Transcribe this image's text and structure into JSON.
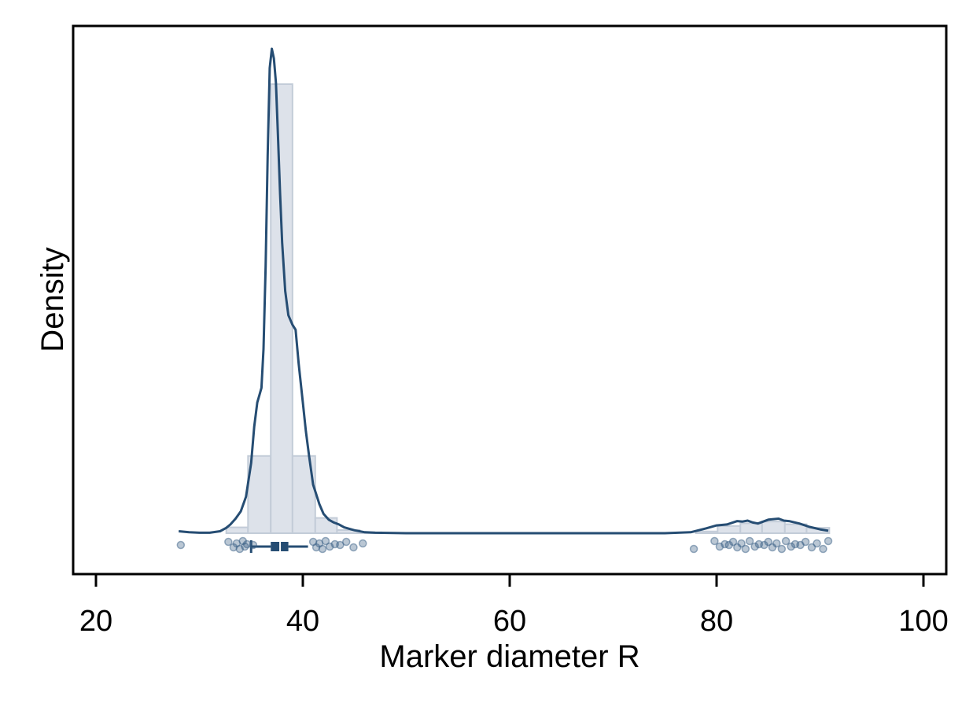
{
  "chart_data": {
    "type": "histogram",
    "title": "",
    "xlabel": "Marker diameter R",
    "ylabel": "Density",
    "xlim": [
      18,
      102
    ],
    "xticks": [
      20,
      40,
      60,
      80,
      100
    ],
    "xtick_labels": [
      "20",
      "40",
      "60",
      "80",
      "100"
    ],
    "yticks_shown": false,
    "grid": false,
    "colors": {
      "histogram_fill": "#dde2ea",
      "histogram_edge": "#c3ccd8",
      "density_line": "#264d73",
      "points": "#3a5f85"
    },
    "histogram": {
      "bin_edges": [
        32.6,
        34.7,
        36.9,
        39.0,
        41.2,
        43.3,
        45.5,
        47.6
      ],
      "relative_heights": [
        0.013,
        0.172,
        1.0,
        0.172,
        0.034,
        0.007,
        0.002
      ]
    },
    "histogram_right": {
      "bin_edges": [
        78.0,
        80.1,
        82.3,
        84.4,
        86.6,
        88.7,
        90.9
      ],
      "relative_heights": [
        0.004,
        0.016,
        0.022,
        0.026,
        0.02,
        0.012
      ]
    },
    "density": {
      "x": [
        28.0,
        29.0,
        30.0,
        31.0,
        32.0,
        32.6,
        33.0,
        33.5,
        34.0,
        34.5,
        35.0,
        35.3,
        35.6,
        35.8,
        36.0,
        36.2,
        36.4,
        36.6,
        36.8,
        37.0,
        37.2,
        37.4,
        37.6,
        37.8,
        38.0,
        38.3,
        38.6,
        39.0,
        39.3,
        39.6,
        40.0,
        40.3,
        40.6,
        41.0,
        41.3,
        41.6,
        42.0,
        42.5,
        43.0,
        43.5,
        44.0,
        45.0,
        46.0,
        47.0,
        50.0,
        55.0,
        60.0,
        65.0,
        70.0,
        75.0,
        77.5,
        79.0,
        80.0,
        81.0,
        82.0,
        82.5,
        83.0,
        83.5,
        84.0,
        85.0,
        86.0,
        86.5,
        87.0,
        88.0,
        89.0,
        90.0,
        90.8
      ],
      "y": [
        0.004,
        0.002,
        0.001,
        0.001,
        0.004,
        0.011,
        0.018,
        0.03,
        0.045,
        0.075,
        0.145,
        0.22,
        0.27,
        0.285,
        0.3,
        0.38,
        0.55,
        0.78,
        0.96,
        1.0,
        0.98,
        0.93,
        0.82,
        0.7,
        0.6,
        0.5,
        0.45,
        0.43,
        0.42,
        0.35,
        0.27,
        0.21,
        0.16,
        0.1,
        0.08,
        0.06,
        0.04,
        0.028,
        0.022,
        0.018,
        0.012,
        0.006,
        0.002,
        0.001,
        0.0,
        0.0,
        0.0,
        0.0,
        0.0,
        0.0,
        0.002,
        0.01,
        0.016,
        0.018,
        0.025,
        0.024,
        0.026,
        0.022,
        0.02,
        0.028,
        0.03,
        0.026,
        0.025,
        0.02,
        0.013,
        0.008,
        0.005
      ]
    },
    "boxplot": {
      "whisker_low": 35.0,
      "q1": 36.9,
      "median": 37.8,
      "q3": 38.6,
      "whisker_high": 40.5
    },
    "points": [
      28.2,
      32.8,
      33.3,
      33.6,
      33.9,
      34.2,
      34.4,
      34.6,
      35.2,
      41.0,
      41.3,
      41.6,
      41.9,
      42.2,
      42.6,
      43.1,
      43.6,
      44.2,
      44.9,
      45.8,
      77.8,
      79.8,
      80.3,
      80.8,
      81.2,
      81.6,
      82.0,
      82.4,
      82.8,
      83.2,
      83.7,
      84.1,
      84.6,
      85.0,
      85.4,
      85.8,
      86.3,
      86.7,
      87.2,
      87.6,
      88.1,
      88.6,
      89.2,
      89.7,
      90.3,
      90.8
    ]
  }
}
